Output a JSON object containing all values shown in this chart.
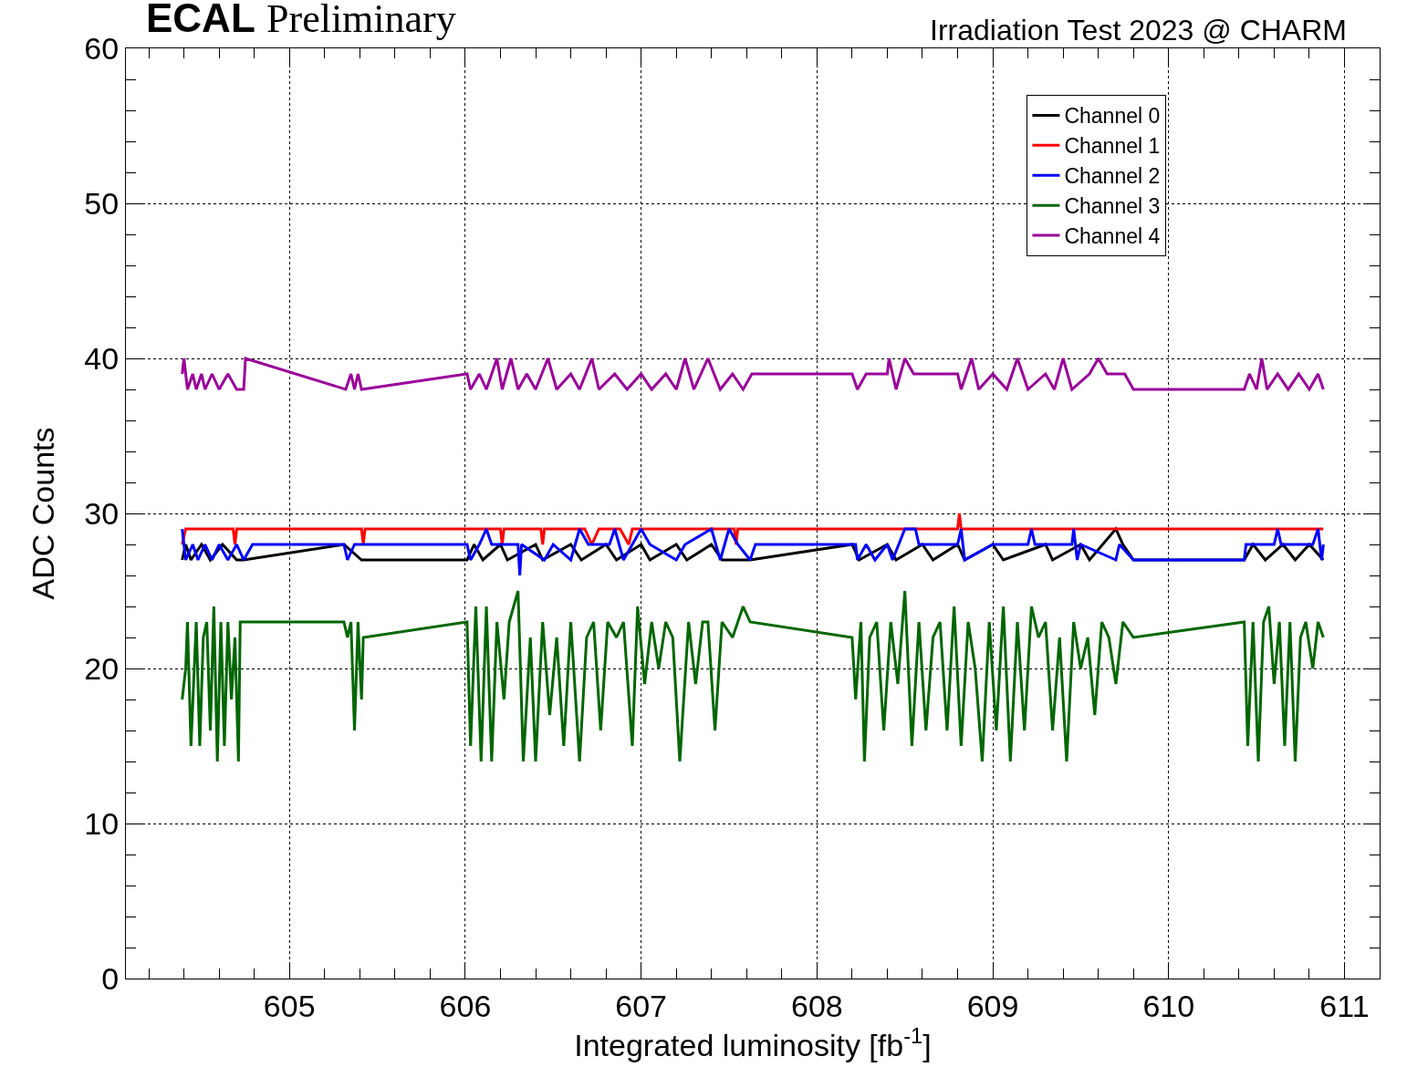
{
  "chart_data": {
    "type": "line",
    "title": "ECAL Preliminary",
    "subtitle": "Irradiation Test 2023 @ CHARM",
    "xlabel": "Integrated luminosity [fb$^{-1}$]",
    "ylabel": "ADC Counts",
    "xlim": [
      604.07,
      611.2
    ],
    "xticks": [
      605,
      606,
      607,
      608,
      609,
      610,
      611
    ],
    "ylim": [
      0,
      60
    ],
    "yticks": [
      0,
      10,
      20,
      30,
      40,
      50,
      60
    ],
    "grid": true,
    "legend": "top right",
    "line_style": "solid",
    "marker": "none",
    "series": [
      {
        "name": "Channel 0",
        "color": "#000000",
        "x": [
          604.39,
          604.41,
          604.44,
          604.5,
          604.55,
          604.62,
          604.7,
          604.74,
          605.31,
          605.41,
          606.01,
          606.05,
          606.1,
          606.2,
          606.24,
          606.4,
          606.44,
          606.6,
          606.66,
          606.8,
          606.86,
          607.0,
          607.05,
          607.2,
          607.26,
          607.4,
          607.46,
          607.62,
          608.2,
          608.24,
          608.4,
          608.45,
          608.6,
          608.66,
          608.8,
          608.84,
          609.0,
          609.06,
          609.3,
          609.34,
          609.5,
          609.55,
          609.7,
          609.74,
          609.8,
          610.43,
          610.48,
          610.55,
          610.65,
          610.72,
          610.8,
          610.88
        ],
        "values": [
          27,
          28,
          27,
          28,
          27,
          28,
          27,
          27,
          28,
          27,
          27,
          28,
          27,
          28,
          27,
          28,
          27,
          28,
          27,
          28,
          27,
          28,
          27,
          28,
          27,
          28,
          27,
          27,
          28,
          27,
          28,
          27,
          28,
          27,
          28,
          27,
          28,
          27,
          28,
          27,
          28,
          27,
          29,
          28,
          27,
          27,
          28,
          27,
          28,
          27,
          28,
          27
        ]
      },
      {
        "name": "Channel 1",
        "color": "#ff0000",
        "x": [
          604.39,
          604.41,
          604.68,
          604.69,
          604.7,
          605.41,
          605.42,
          605.43,
          606.2,
          606.21,
          606.22,
          606.43,
          606.44,
          606.45,
          606.68,
          606.72,
          606.76,
          606.88,
          606.93,
          606.95,
          607.53,
          607.54,
          607.55,
          608.8,
          608.81,
          608.82,
          610.88
        ],
        "values": [
          28,
          29,
          29,
          28,
          29,
          29,
          28,
          29,
          29,
          28,
          29,
          29,
          28,
          29,
          29,
          28,
          29,
          29,
          28,
          29,
          29,
          28,
          29,
          29,
          30,
          29,
          29
        ]
      },
      {
        "name": "Channel 2",
        "color": "#0000ff",
        "x": [
          604.39,
          604.41,
          604.45,
          604.48,
          604.52,
          604.56,
          604.6,
          604.65,
          604.7,
          604.74,
          604.79,
          605.31,
          605.33,
          605.37,
          605.41,
          606.01,
          606.03,
          606.08,
          606.12,
          606.15,
          606.3,
          606.31,
          606.32,
          606.45,
          606.5,
          606.6,
          606.65,
          606.7,
          606.82,
          606.85,
          606.9,
          607.0,
          607.05,
          607.2,
          607.25,
          607.4,
          607.45,
          607.5,
          607.55,
          607.62,
          607.65,
          608.22,
          608.23,
          608.28,
          608.33,
          608.4,
          608.43,
          608.5,
          608.56,
          608.58,
          608.8,
          608.82,
          608.84,
          609.0,
          609.2,
          609.22,
          609.24,
          609.45,
          609.46,
          609.48,
          609.5,
          609.7,
          609.72,
          609.8,
          610.43,
          610.44,
          610.6,
          610.62,
          610.64,
          610.82,
          610.85,
          610.87,
          610.88
        ],
        "values": [
          29,
          27,
          28,
          27,
          28,
          27,
          28,
          27,
          28,
          27,
          28,
          28,
          27,
          28,
          28,
          28,
          27,
          28,
          29,
          28,
          28,
          26,
          28,
          27,
          28,
          27,
          29,
          28,
          28,
          29,
          27,
          29,
          28,
          27,
          28,
          29,
          27,
          29,
          28,
          27,
          28,
          28,
          27,
          28,
          27,
          28,
          27,
          29,
          29,
          28,
          28,
          29,
          27,
          28,
          28,
          29,
          28,
          28,
          29,
          27,
          28,
          27,
          28,
          27,
          27,
          28,
          28,
          29,
          28,
          28,
          29,
          27,
          28
        ]
      },
      {
        "name": "Channel 3",
        "color": "#006600",
        "x": [
          604.39,
          604.41,
          604.42,
          604.44,
          604.47,
          604.49,
          604.51,
          604.53,
          604.55,
          604.57,
          604.59,
          604.61,
          604.63,
          604.65,
          604.67,
          604.69,
          604.71,
          604.72,
          605.31,
          605.33,
          605.35,
          605.37,
          605.39,
          605.41,
          605.42,
          606.01,
          606.03,
          606.06,
          606.09,
          606.12,
          606.15,
          606.18,
          606.22,
          606.25,
          606.3,
          606.33,
          606.37,
          606.4,
          606.44,
          606.48,
          606.52,
          606.56,
          606.6,
          606.65,
          606.69,
          606.73,
          606.77,
          606.81,
          606.86,
          606.9,
          606.95,
          606.98,
          607.02,
          607.06,
          607.1,
          607.14,
          607.18,
          607.22,
          607.27,
          607.31,
          607.35,
          607.38,
          607.42,
          607.46,
          607.52,
          607.58,
          607.62,
          608.2,
          608.22,
          608.25,
          608.27,
          608.3,
          608.34,
          608.38,
          608.42,
          608.46,
          608.5,
          608.54,
          608.58,
          608.62,
          608.66,
          608.7,
          608.74,
          608.78,
          608.82,
          608.86,
          608.9,
          608.94,
          608.98,
          609.02,
          609.06,
          609.1,
          609.14,
          609.18,
          609.22,
          609.26,
          609.3,
          609.34,
          609.38,
          609.42,
          609.46,
          609.5,
          609.54,
          609.58,
          609.62,
          609.66,
          609.7,
          609.74,
          609.8,
          610.43,
          610.45,
          610.48,
          610.51,
          610.54,
          610.57,
          610.6,
          610.63,
          610.66,
          610.69,
          610.72,
          610.75,
          610.78,
          610.82,
          610.85,
          610.88
        ],
        "values": [
          18,
          20,
          23,
          15,
          23,
          15,
          22,
          23,
          16,
          24,
          14,
          23,
          15,
          23,
          18,
          22,
          14,
          23,
          23,
          22,
          23,
          16,
          23,
          18,
          22,
          23,
          15,
          24,
          14,
          24,
          14,
          23,
          18,
          23,
          25,
          14,
          22,
          14,
          23,
          17,
          22,
          15,
          23,
          14,
          22,
          23,
          16,
          23,
          22,
          23,
          15,
          24,
          19,
          23,
          20,
          23,
          22,
          14,
          23,
          19,
          23,
          23,
          16,
          23,
          22,
          24,
          23,
          22,
          18,
          23,
          14,
          22,
          23,
          16,
          23,
          19,
          25,
          15,
          23,
          16,
          22,
          23,
          16,
          24,
          15,
          23,
          20,
          14,
          23,
          16,
          24,
          14,
          23,
          16,
          24,
          22,
          23,
          16,
          22,
          14,
          23,
          20,
          22,
          17,
          23,
          22,
          19,
          23,
          22,
          23,
          15,
          23,
          14,
          23,
          24,
          19,
          23,
          15,
          23,
          14,
          22,
          23,
          20,
          23,
          22
        ]
      },
      {
        "name": "Channel 4",
        "color": "#990099",
        "x": [
          604.39,
          604.4,
          604.42,
          604.45,
          604.47,
          604.5,
          604.52,
          604.56,
          604.6,
          604.65,
          604.7,
          604.74,
          604.75,
          605.32,
          605.35,
          605.37,
          605.39,
          605.41,
          606.01,
          606.03,
          606.08,
          606.12,
          606.18,
          606.21,
          606.26,
          606.3,
          606.35,
          606.4,
          606.47,
          606.52,
          606.6,
          606.65,
          606.72,
          606.76,
          606.85,
          606.92,
          607.0,
          607.06,
          607.14,
          607.2,
          607.25,
          607.3,
          607.38,
          607.45,
          607.52,
          607.58,
          607.63,
          608.2,
          608.23,
          608.28,
          608.4,
          608.41,
          608.45,
          608.5,
          608.55,
          608.8,
          608.82,
          608.88,
          608.92,
          609.0,
          609.08,
          609.14,
          609.2,
          609.3,
          609.35,
          609.4,
          609.45,
          609.55,
          609.6,
          609.65,
          609.75,
          609.8,
          610.43,
          610.46,
          610.5,
          610.53,
          610.56,
          610.62,
          610.68,
          610.74,
          610.8,
          610.85,
          610.88
        ],
        "values": [
          39,
          40,
          38,
          39,
          38,
          39,
          38,
          39,
          38,
          39,
          38,
          38,
          40,
          38,
          39,
          38,
          39,
          38,
          39,
          38,
          39,
          38,
          40,
          38,
          40,
          38,
          39,
          38,
          40,
          38,
          39,
          38,
          40,
          38,
          39,
          38,
          39,
          38,
          39,
          38,
          40,
          38,
          40,
          38,
          39,
          38,
          39,
          39,
          38,
          39,
          39,
          40,
          38,
          40,
          39,
          39,
          38,
          40,
          38,
          39,
          38,
          40,
          38,
          39,
          38,
          40,
          38,
          39,
          40,
          39,
          39,
          38,
          38,
          39,
          38,
          40,
          38,
          39,
          38,
          39,
          38,
          39,
          38
        ]
      }
    ]
  }
}
